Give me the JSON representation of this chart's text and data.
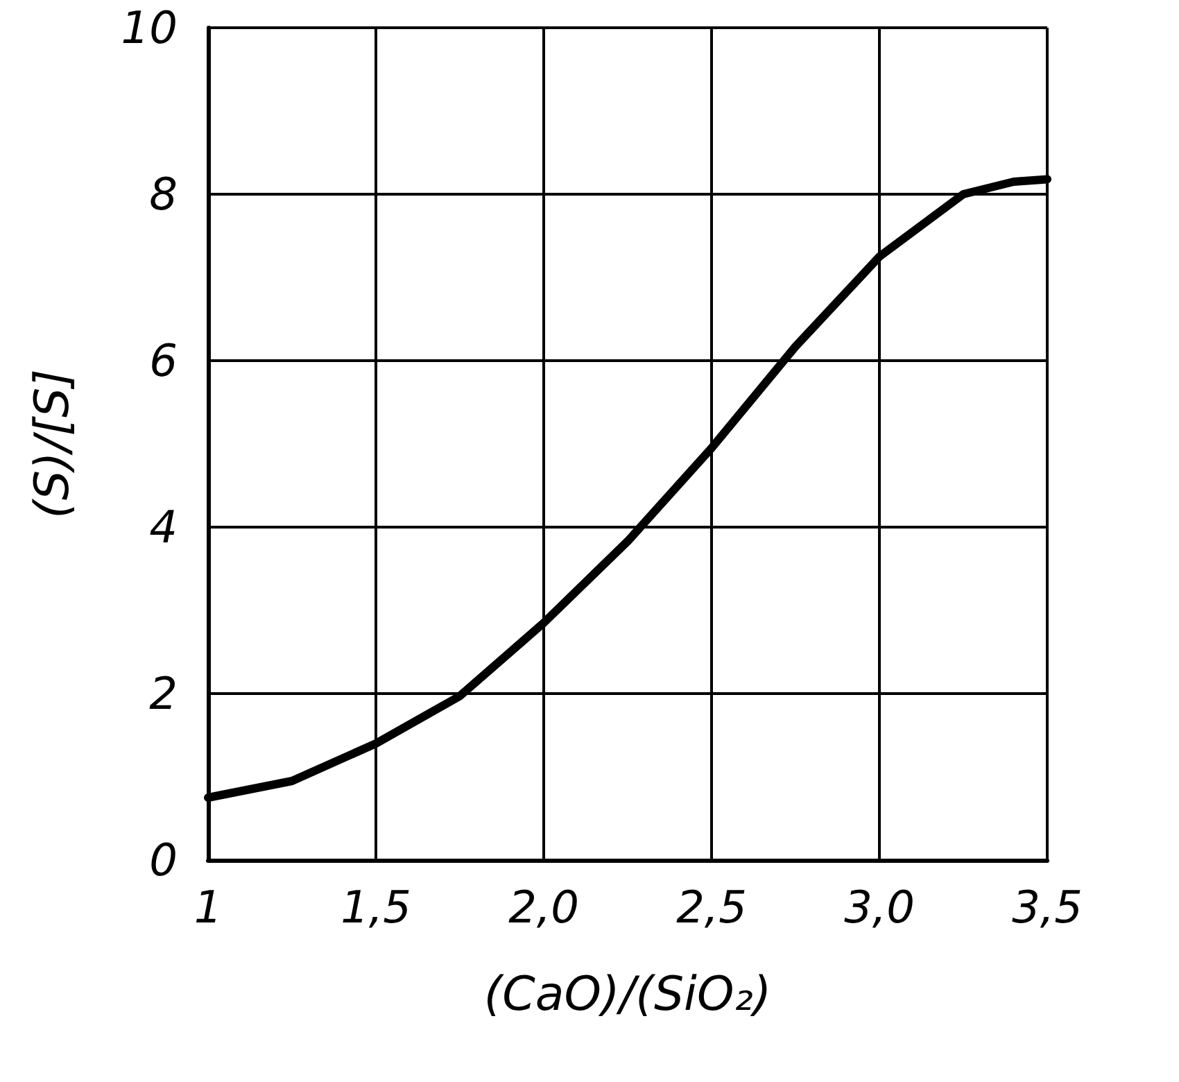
{
  "chart_data": {
    "type": "line",
    "xlabel": "(CaO)/(SiO₂)",
    "ylabel": "(S)/[S]",
    "series": [
      {
        "color": "#000000",
        "x": [
          1,
          1.25,
          1.5,
          1.75,
          2.0,
          2.25,
          2.5,
          2.75,
          3.0,
          3.25,
          3.4,
          3.5
        ],
        "values": [
          0.75,
          0.95,
          1.4,
          1.97,
          2.85,
          3.83,
          4.95,
          6.17,
          7.25,
          8.0,
          8.15,
          8.18
        ]
      }
    ],
    "xlim": [
      1,
      3.5
    ],
    "xticks": [
      {
        "value": 1,
        "label": "1"
      },
      {
        "value": 1.5,
        "label": "1,5"
      },
      {
        "value": 2,
        "label": "2,0"
      },
      {
        "value": 2.5,
        "label": "2,5"
      },
      {
        "value": 3,
        "label": "3,0"
      },
      {
        "value": 3.5,
        "label": "3,5"
      }
    ],
    "ylim": [
      0,
      10
    ],
    "yticks": [
      0,
      2,
      4,
      6,
      8,
      10
    ],
    "grid": true,
    "marker": "none",
    "line_style": "solid"
  }
}
